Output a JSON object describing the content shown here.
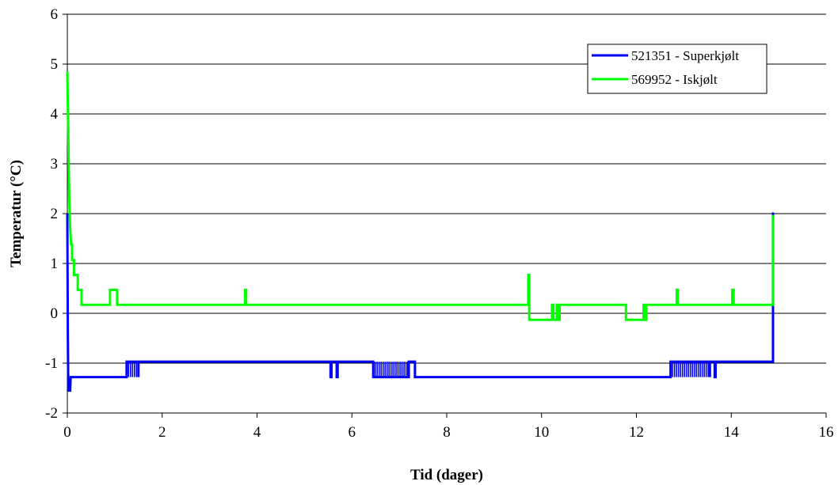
{
  "chart_data": {
    "type": "line",
    "xlabel": "Tid (dager)",
    "ylabel": "Temperatur (°C)",
    "xlim": [
      0,
      16
    ],
    "ylim": [
      -2,
      6
    ],
    "x_ticks": [
      0,
      2,
      4,
      6,
      8,
      10,
      12,
      14,
      16
    ],
    "y_ticks": [
      -2,
      -1,
      0,
      1,
      2,
      3,
      4,
      5,
      6
    ],
    "grid": "horizontal",
    "legend_position": "top-right",
    "series": [
      {
        "name": "521351 - Superkjølt",
        "color": "#0000FF",
        "points": [
          [
            0,
            2.0
          ],
          [
            0.01,
            -0.3
          ],
          [
            0.02,
            -1.55
          ],
          [
            0.06,
            -1.55
          ],
          [
            0.07,
            -1.28
          ],
          [
            1.25,
            -1.28
          ],
          [
            1.25,
            -0.97
          ],
          [
            1.5,
            -0.97
          ],
          [
            1.5,
            -1.28
          ],
          [
            1.5,
            -0.97
          ],
          [
            5.55,
            -0.97
          ],
          [
            5.55,
            -1.28
          ],
          [
            5.57,
            -1.28
          ],
          [
            5.57,
            -0.97
          ],
          [
            5.68,
            -0.97
          ],
          [
            5.68,
            -1.28
          ],
          [
            5.7,
            -1.28
          ],
          [
            5.7,
            -0.97
          ],
          [
            6.45,
            -0.97
          ],
          [
            6.45,
            -1.28
          ],
          [
            7.2,
            -1.28
          ],
          [
            7.2,
            -0.97
          ],
          [
            7.33,
            -0.97
          ],
          [
            7.33,
            -1.28
          ],
          [
            12.72,
            -1.28
          ],
          [
            12.72,
            -0.97
          ],
          [
            13.55,
            -0.97
          ],
          [
            13.55,
            -1.28
          ],
          [
            13.55,
            -0.97
          ],
          [
            13.65,
            -0.97
          ],
          [
            13.65,
            -1.28
          ],
          [
            13.67,
            -1.28
          ],
          [
            13.67,
            -0.97
          ],
          [
            14.88,
            -0.97
          ],
          [
            14.88,
            2.0
          ],
          [
            14.9,
            2.0
          ]
        ],
        "oscillation_bands": [
          [
            1.25,
            1.5
          ],
          [
            6.45,
            7.2
          ],
          [
            12.72,
            13.55
          ]
        ],
        "oscillation_range": [
          -1.28,
          -0.97
        ]
      },
      {
        "name": "569952 - Iskjølt",
        "color": "#00FF00",
        "points": [
          [
            0,
            4.85
          ],
          [
            0.02,
            3.6
          ],
          [
            0.04,
            2.3
          ],
          [
            0.06,
            1.7
          ],
          [
            0.08,
            1.38
          ],
          [
            0.1,
            1.38
          ],
          [
            0.1,
            1.07
          ],
          [
            0.14,
            1.07
          ],
          [
            0.14,
            0.77
          ],
          [
            0.22,
            0.77
          ],
          [
            0.22,
            0.47
          ],
          [
            0.3,
            0.47
          ],
          [
            0.3,
            0.17
          ],
          [
            0.9,
            0.17
          ],
          [
            0.9,
            0.47
          ],
          [
            1.05,
            0.47
          ],
          [
            1.05,
            0.17
          ],
          [
            3.75,
            0.17
          ],
          [
            3.75,
            0.47
          ],
          [
            3.77,
            0.47
          ],
          [
            3.77,
            0.17
          ],
          [
            9.72,
            0.17
          ],
          [
            9.72,
            0.77
          ],
          [
            9.74,
            0.77
          ],
          [
            9.74,
            -0.13
          ],
          [
            10.22,
            -0.13
          ],
          [
            10.22,
            0.17
          ],
          [
            10.25,
            0.17
          ],
          [
            10.25,
            -0.13
          ],
          [
            10.32,
            -0.13
          ],
          [
            10.32,
            0.17
          ],
          [
            10.35,
            0.17
          ],
          [
            10.35,
            -0.13
          ],
          [
            10.38,
            -0.13
          ],
          [
            10.38,
            0.17
          ],
          [
            11.78,
            0.17
          ],
          [
            11.78,
            -0.13
          ],
          [
            12.15,
            -0.13
          ],
          [
            12.15,
            0.17
          ],
          [
            12.18,
            0.17
          ],
          [
            12.18,
            -0.13
          ],
          [
            12.21,
            -0.13
          ],
          [
            12.21,
            0.17
          ],
          [
            12.85,
            0.17
          ],
          [
            12.85,
            0.47
          ],
          [
            12.87,
            0.47
          ],
          [
            12.87,
            0.17
          ],
          [
            14.02,
            0.17
          ],
          [
            14.02,
            0.47
          ],
          [
            14.05,
            0.47
          ],
          [
            14.05,
            0.17
          ],
          [
            14.88,
            0.17
          ],
          [
            14.88,
            1.95
          ],
          [
            14.9,
            1.95
          ]
        ]
      }
    ]
  }
}
